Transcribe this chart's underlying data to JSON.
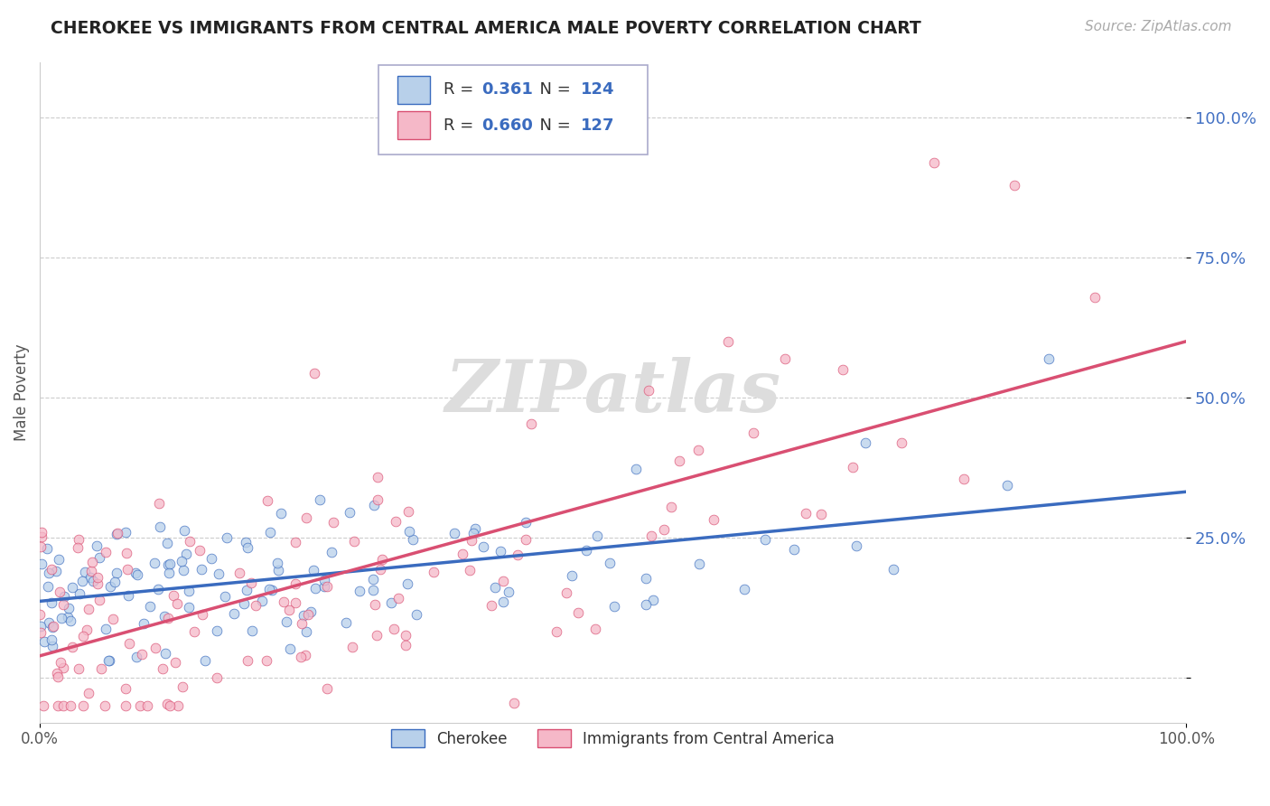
{
  "title": "CHEROKEE VS IMMIGRANTS FROM CENTRAL AMERICA MALE POVERTY CORRELATION CHART",
  "source": "Source: ZipAtlas.com",
  "ylabel": "Male Poverty",
  "cherokee_R": 0.361,
  "cherokee_N": 124,
  "immigrant_R": 0.66,
  "immigrant_N": 127,
  "cherokee_color": "#b8d0ea",
  "immigrant_color": "#f5b8c8",
  "cherokee_line_color": "#3a6bbf",
  "immigrant_line_color": "#d94f72",
  "xlim": [
    0.0,
    1.0
  ],
  "ylim": [
    -0.08,
    1.1
  ],
  "yticks": [
    0.0,
    0.25,
    0.5,
    0.75,
    1.0
  ],
  "ytick_labels": [
    "",
    "25.0%",
    "50.0%",
    "75.0%",
    "100.0%"
  ],
  "background_color": "#ffffff",
  "grid_color": "#cccccc",
  "cherokee_intercept": 0.155,
  "cherokee_slope": 0.125,
  "immigrant_intercept": 0.04,
  "immigrant_slope": 0.46,
  "legend_label_cherokee": "Cherokee",
  "legend_label_immigrant": "Immigrants from Central America"
}
